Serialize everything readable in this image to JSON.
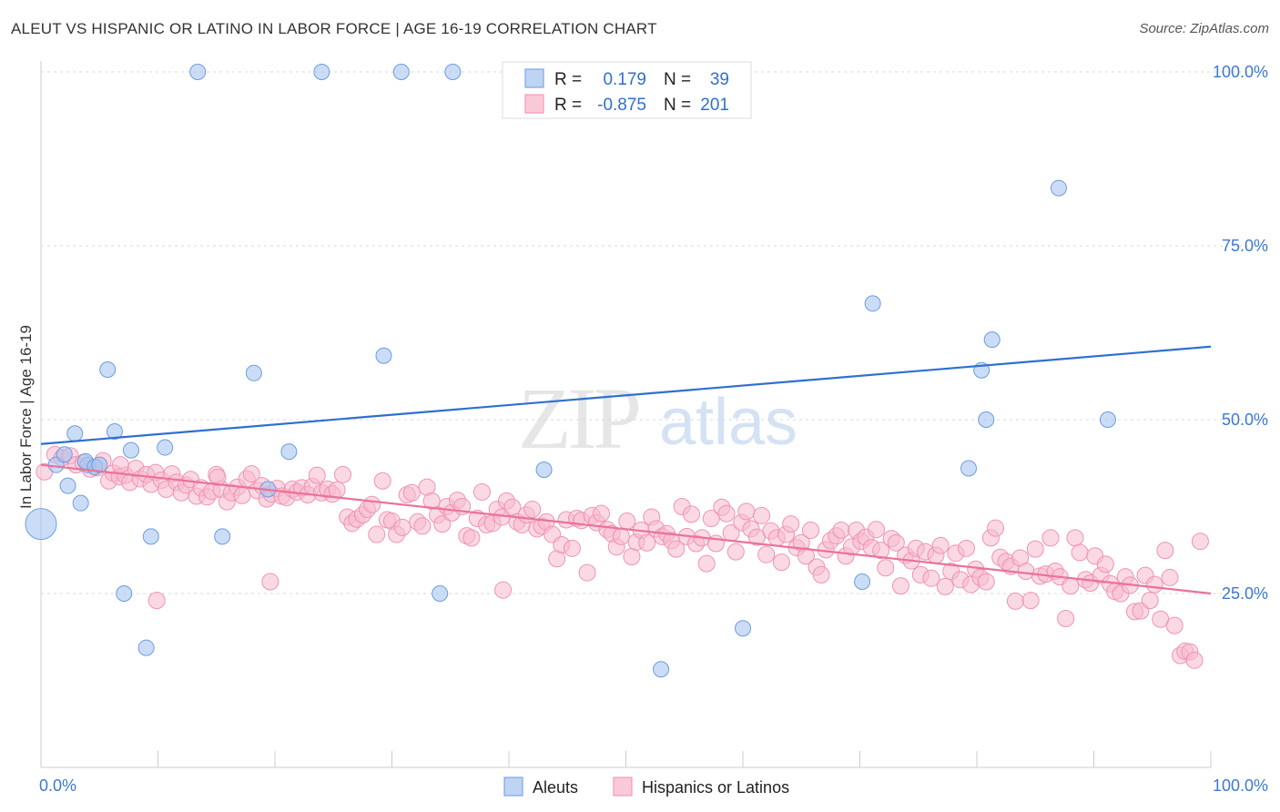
{
  "title": "ALEUT VS HISPANIC OR LATINO IN LABOR FORCE | AGE 16-19 CORRELATION CHART",
  "source": "Source: ZipAtlas.com",
  "watermark": {
    "zip": "ZIP",
    "atlas": "atlas"
  },
  "legend": {
    "rows": [
      {
        "r_label": "R =",
        "r_value": "0.179",
        "n_label": "N =",
        "n_value": "39"
      },
      {
        "r_label": "R =",
        "r_value": "-0.875",
        "n_label": "N =",
        "n_value": "201"
      }
    ]
  },
  "bottom_legend": [
    "Aleuts",
    "Hispanics or Latinos"
  ],
  "chart_data": {
    "type": "scatter",
    "title": "ALEUT VS HISPANIC OR LATINO IN LABOR FORCE | AGE 16-19 CORRELATION CHART",
    "xlabel": "",
    "ylabel": "In Labor Force | Age 16-19",
    "xlim": [
      0,
      100
    ],
    "ylim": [
      0,
      100
    ],
    "x_tick_labels": [
      "0.0%",
      "100.0%"
    ],
    "y_tick_labels": [
      "100.0%",
      "75.0%",
      "50.0%",
      "25.0%"
    ],
    "y_ticks": [
      100,
      75,
      50,
      25
    ],
    "grid": "horizontal dashed",
    "legend_position": "top-center",
    "colors": {
      "aleuts": "#7aa7e8",
      "hispanics": "#f29bb8",
      "aleuts_line": "#2f6fd0",
      "hispanics_line": "#e9729b"
    },
    "series": [
      {
        "name": "Aleuts",
        "r": 0.179,
        "n": 39,
        "trend": {
          "x": [
            0,
            100
          ],
          "y": [
            46.5,
            60.5
          ]
        },
        "points": [
          [
            0,
            35
          ],
          [
            1.3,
            43.5
          ],
          [
            2.3,
            40.5
          ],
          [
            2.9,
            48
          ],
          [
            3.4,
            38
          ],
          [
            4,
            43.5
          ],
          [
            5.7,
            57.2
          ],
          [
            6.3,
            48.3
          ],
          [
            7.1,
            25
          ],
          [
            7.7,
            45.6
          ],
          [
            9.0,
            17.2
          ],
          [
            9.4,
            33.2
          ],
          [
            10.6,
            46
          ],
          [
            13.4,
            100
          ],
          [
            15.5,
            33.2
          ],
          [
            18.2,
            56.7
          ],
          [
            19.4,
            40
          ],
          [
            21.2,
            45.4
          ],
          [
            24.0,
            100
          ],
          [
            29.3,
            59.2
          ],
          [
            30.8,
            100
          ],
          [
            34.1,
            25
          ],
          [
            35.2,
            100
          ],
          [
            43.0,
            42.8
          ],
          [
            53.0,
            14.1
          ],
          [
            56.1,
            100
          ],
          [
            60.0,
            20
          ],
          [
            70.2,
            26.7
          ],
          [
            71.1,
            66.7
          ],
          [
            79.3,
            43
          ],
          [
            80.4,
            57.1
          ],
          [
            80.8,
            50
          ],
          [
            81.3,
            61.5
          ],
          [
            87.0,
            83.3
          ],
          [
            91.2,
            50
          ],
          [
            2.0,
            45
          ],
          [
            3.8,
            44
          ],
          [
            4.6,
            43.2
          ],
          [
            5.0,
            43.5
          ]
        ]
      },
      {
        "name": "Hispanics or Latinos",
        "r": -0.875,
        "n": 201,
        "trend": {
          "x": [
            0,
            100
          ],
          "y": [
            43.5,
            25.0
          ]
        },
        "points": [
          [
            0.3,
            42.5
          ],
          [
            1.2,
            45
          ],
          [
            1.8,
            44.5
          ],
          [
            2.5,
            44.8
          ],
          [
            3.0,
            43.5
          ],
          [
            3.6,
            43.8
          ],
          [
            4.2,
            42.9
          ],
          [
            4.8,
            43.1
          ],
          [
            5.3,
            44.1
          ],
          [
            5.8,
            41.2
          ],
          [
            6.2,
            42.3
          ],
          [
            6.7,
            41.8
          ],
          [
            7.2,
            42.0
          ],
          [
            7.6,
            41.0
          ],
          [
            8.1,
            43.0
          ],
          [
            8.5,
            41.5
          ],
          [
            9.0,
            42.1
          ],
          [
            9.4,
            40.7
          ],
          [
            9.8,
            42.4
          ],
          [
            10.3,
            41.3
          ],
          [
            10.7,
            40.0
          ],
          [
            11.2,
            42.2
          ],
          [
            11.6,
            41.0
          ],
          [
            12.0,
            39.5
          ],
          [
            12.4,
            40.6
          ],
          [
            12.8,
            41.4
          ],
          [
            13.3,
            39.0
          ],
          [
            13.7,
            40.2
          ],
          [
            14.2,
            38.9
          ],
          [
            14.6,
            39.7
          ],
          [
            15.0,
            42.1
          ],
          [
            15.4,
            40.0
          ],
          [
            15.9,
            38.2
          ],
          [
            16.3,
            39.5
          ],
          [
            16.8,
            40.3
          ],
          [
            17.2,
            39.1
          ],
          [
            17.6,
            41.5
          ],
          [
            18.0,
            42.2
          ],
          [
            18.5,
            39.8
          ],
          [
            18.9,
            40.5
          ],
          [
            19.3,
            38.6
          ],
          [
            19.7,
            39.3
          ],
          [
            20.2,
            40.1
          ],
          [
            20.6,
            39.0
          ],
          [
            21.0,
            38.8
          ],
          [
            21.5,
            40.0
          ],
          [
            21.9,
            39.6
          ],
          [
            22.3,
            40.2
          ],
          [
            22.8,
            39.2
          ],
          [
            23.2,
            40.4
          ],
          [
            23.6,
            42.0
          ],
          [
            24.0,
            39.5
          ],
          [
            24.5,
            40.0
          ],
          [
            24.9,
            39.3
          ],
          [
            25.3,
            39.9
          ],
          [
            25.8,
            42.1
          ],
          [
            26.2,
            36.0
          ],
          [
            26.6,
            35.1
          ],
          [
            27.0,
            35.7
          ],
          [
            27.5,
            36.3
          ],
          [
            27.9,
            37.1
          ],
          [
            28.3,
            37.8
          ],
          [
            28.7,
            33.5
          ],
          [
            29.2,
            41.2
          ],
          [
            29.6,
            35.6
          ],
          [
            30.0,
            35.4
          ],
          [
            30.4,
            33.5
          ],
          [
            30.9,
            34.5
          ],
          [
            31.3,
            39.2
          ],
          [
            31.7,
            39.5
          ],
          [
            32.2,
            35.3
          ],
          [
            32.6,
            34.7
          ],
          [
            33.0,
            40.3
          ],
          [
            33.4,
            38.3
          ],
          [
            33.9,
            36.3
          ],
          [
            34.3,
            35.0
          ],
          [
            34.7,
            37.5
          ],
          [
            35.1,
            36.6
          ],
          [
            35.6,
            38.4
          ],
          [
            36.0,
            37.5
          ],
          [
            36.4,
            33.3
          ],
          [
            36.8,
            33.0
          ],
          [
            37.3,
            35.8
          ],
          [
            37.7,
            39.6
          ],
          [
            38.1,
            34.9
          ],
          [
            38.6,
            35.1
          ],
          [
            39.0,
            37.1
          ],
          [
            39.4,
            36.0
          ],
          [
            39.8,
            38.3
          ],
          [
            40.3,
            37.4
          ],
          [
            40.7,
            35.3
          ],
          [
            41.1,
            34.9
          ],
          [
            41.5,
            36.3
          ],
          [
            42.0,
            37.1
          ],
          [
            42.4,
            34.3
          ],
          [
            42.8,
            34.7
          ],
          [
            43.2,
            35.3
          ],
          [
            43.7,
            33.5
          ],
          [
            44.1,
            30.0
          ],
          [
            44.5,
            32.0
          ],
          [
            44.9,
            35.6
          ],
          [
            45.4,
            31.5
          ],
          [
            45.8,
            35.8
          ],
          [
            46.2,
            35.5
          ],
          [
            46.7,
            28.0
          ],
          [
            47.1,
            36.2
          ],
          [
            47.5,
            35.2
          ],
          [
            47.9,
            36.5
          ],
          [
            48.4,
            34.2
          ],
          [
            48.8,
            33.6
          ],
          [
            49.2,
            31.7
          ],
          [
            49.6,
            33.2
          ],
          [
            50.1,
            35.4
          ],
          [
            50.5,
            30.3
          ],
          [
            50.9,
            32.4
          ],
          [
            51.3,
            34.1
          ],
          [
            51.8,
            32.3
          ],
          [
            52.2,
            36.0
          ],
          [
            52.6,
            34.3
          ],
          [
            53.1,
            33.2
          ],
          [
            53.5,
            33.6
          ],
          [
            53.9,
            32.6
          ],
          [
            54.3,
            31.4
          ],
          [
            54.8,
            37.5
          ],
          [
            55.2,
            33.2
          ],
          [
            55.6,
            36.4
          ],
          [
            56.0,
            32.2
          ],
          [
            56.5,
            33.0
          ],
          [
            56.9,
            29.3
          ],
          [
            57.3,
            35.8
          ],
          [
            57.7,
            32.2
          ],
          [
            58.2,
            37.4
          ],
          [
            58.6,
            36.5
          ],
          [
            59.0,
            33.7
          ],
          [
            59.4,
            31.0
          ],
          [
            59.9,
            35.2
          ],
          [
            60.3,
            36.8
          ],
          [
            60.7,
            34.3
          ],
          [
            61.2,
            33.1
          ],
          [
            61.6,
            36.2
          ],
          [
            62.0,
            30.6
          ],
          [
            62.4,
            34.0
          ],
          [
            62.9,
            33.0
          ],
          [
            63.3,
            29.5
          ],
          [
            63.7,
            33.5
          ],
          [
            64.1,
            35.0
          ],
          [
            64.6,
            31.6
          ],
          [
            65.0,
            32.3
          ],
          [
            65.4,
            30.4
          ],
          [
            65.8,
            34.1
          ],
          [
            66.3,
            28.8
          ],
          [
            66.7,
            27.7
          ],
          [
            67.1,
            31.3
          ],
          [
            67.5,
            32.6
          ],
          [
            68.0,
            33.3
          ],
          [
            68.4,
            34.1
          ],
          [
            68.8,
            30.4
          ],
          [
            69.3,
            31.7
          ],
          [
            69.7,
            34.1
          ],
          [
            70.1,
            32.5
          ],
          [
            70.5,
            33.1
          ],
          [
            71.0,
            31.6
          ],
          [
            71.4,
            34.2
          ],
          [
            71.8,
            31.2
          ],
          [
            72.2,
            28.7
          ],
          [
            72.7,
            32.9
          ],
          [
            73.1,
            32.3
          ],
          [
            73.5,
            26.1
          ],
          [
            73.9,
            30.5
          ],
          [
            74.4,
            29.7
          ],
          [
            74.8,
            31.5
          ],
          [
            75.2,
            27.7
          ],
          [
            75.6,
            31.0
          ],
          [
            76.1,
            27.2
          ],
          [
            76.5,
            30.5
          ],
          [
            76.9,
            31.9
          ],
          [
            77.3,
            26.0
          ],
          [
            77.8,
            28.2
          ],
          [
            78.2,
            30.8
          ],
          [
            78.6,
            27.0
          ],
          [
            79.1,
            31.5
          ],
          [
            79.5,
            26.3
          ],
          [
            79.9,
            28.5
          ],
          [
            80.3,
            27.3
          ],
          [
            80.8,
            26.7
          ],
          [
            81.2,
            33.0
          ],
          [
            81.6,
            34.4
          ],
          [
            82.0,
            30.2
          ],
          [
            82.5,
            29.6
          ],
          [
            82.9,
            28.9
          ],
          [
            83.3,
            23.9
          ],
          [
            83.7,
            30.1
          ],
          [
            84.2,
            28.2
          ],
          [
            84.6,
            24.0
          ],
          [
            85.0,
            31.4
          ],
          [
            85.4,
            27.5
          ],
          [
            85.9,
            27.8
          ],
          [
            86.3,
            33.0
          ],
          [
            86.7,
            28.2
          ],
          [
            87.1,
            27.4
          ],
          [
            87.6,
            21.4
          ],
          [
            88.0,
            26.1
          ],
          [
            88.4,
            33.0
          ],
          [
            88.8,
            30.9
          ],
          [
            89.3,
            27.0
          ],
          [
            89.7,
            26.5
          ],
          [
            90.1,
            30.4
          ],
          [
            90.6,
            27.6
          ],
          [
            91.0,
            29.2
          ],
          [
            91.4,
            26.4
          ],
          [
            91.8,
            25.3
          ],
          [
            92.3,
            25.0
          ],
          [
            92.7,
            27.4
          ],
          [
            93.1,
            26.2
          ],
          [
            93.5,
            22.4
          ],
          [
            94.0,
            22.5
          ],
          [
            94.4,
            27.6
          ],
          [
            94.8,
            24.0
          ],
          [
            95.2,
            26.3
          ],
          [
            95.7,
            21.3
          ],
          [
            96.1,
            31.2
          ],
          [
            96.5,
            27.3
          ],
          [
            96.9,
            20.4
          ],
          [
            97.4,
            16.1
          ],
          [
            97.8,
            16.7
          ],
          [
            98.2,
            16.6
          ],
          [
            98.6,
            15.4
          ],
          [
            99.1,
            32.5
          ],
          [
            15.1,
            41.7
          ],
          [
            39.5,
            25.5
          ],
          [
            9.9,
            24.0
          ],
          [
            19.6,
            26.7
          ],
          [
            6.8,
            43.5
          ]
        ]
      }
    ]
  }
}
